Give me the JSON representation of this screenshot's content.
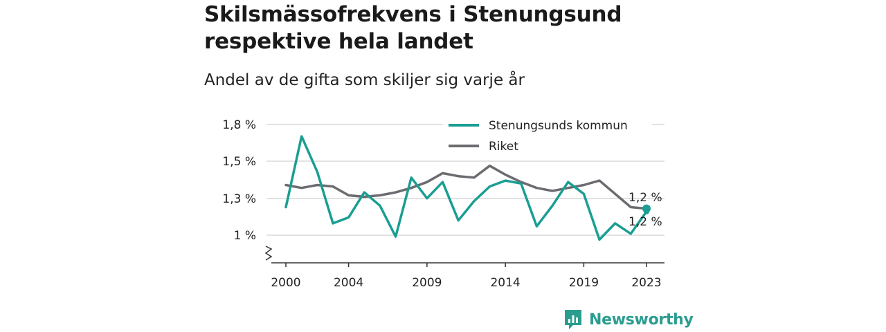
{
  "title": "Skilsmässofrekvens i Stenungsund respektive hela landet",
  "subtitle": "Andel av de gifta som skiljer sig varje år",
  "brand": {
    "name": "Newsworthy",
    "color": "#2a9d8f"
  },
  "chart_data": {
    "type": "line",
    "x": [
      2000,
      2001,
      2002,
      2003,
      2004,
      2005,
      2006,
      2007,
      2008,
      2009,
      2010,
      2011,
      2012,
      2013,
      2014,
      2015,
      2016,
      2017,
      2018,
      2019,
      2020,
      2021,
      2022,
      2023
    ],
    "series": [
      {
        "name": "Stenungsunds kommun",
        "color": "#1a9e93",
        "values": [
          1.19,
          1.67,
          1.43,
          1.08,
          1.12,
          1.29,
          1.2,
          0.99,
          1.39,
          1.25,
          1.36,
          1.1,
          1.23,
          1.33,
          1.37,
          1.35,
          1.06,
          1.2,
          1.36,
          1.28,
          0.97,
          1.08,
          1.01,
          1.16
        ]
      },
      {
        "name": "Riket",
        "color": "#6b6b70",
        "values": [
          1.34,
          1.32,
          1.34,
          1.33,
          1.27,
          1.26,
          1.27,
          1.29,
          1.32,
          1.36,
          1.42,
          1.4,
          1.39,
          1.47,
          1.41,
          1.36,
          1.32,
          1.3,
          1.32,
          1.34,
          1.37,
          1.28,
          1.19,
          1.18
        ]
      }
    ],
    "end_labels": [
      "1,2 %",
      "1,2 %"
    ],
    "y_ticks": [
      1.0,
      1.3,
      1.5,
      1.8
    ],
    "y_tick_labels": [
      "1 %",
      "1,3 %",
      "1,5 %",
      "1,8 %"
    ],
    "x_ticks": [
      2000,
      2004,
      2009,
      2014,
      2019,
      2023
    ],
    "x_tick_labels": [
      "2000",
      "2004",
      "2009",
      "2014",
      "2019",
      "2023"
    ],
    "ylim": [
      0.82,
      1.8
    ],
    "xlim": [
      2000,
      2023
    ],
    "grid": true,
    "legend_position": "top-right",
    "y_axis_break": true
  }
}
